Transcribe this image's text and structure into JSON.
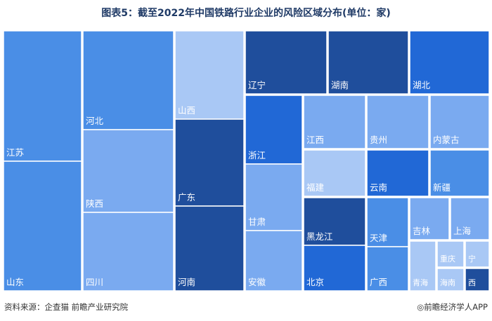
{
  "title": "图表5：截至2022年中国铁路行业企业的风险区域分布(单位：家)",
  "footer": {
    "source": "资料来源：企查猫 前瞻产业研究院",
    "brand": "◎前瞻经济学人APP"
  },
  "chart_data": {
    "type": "treemap",
    "title": "图表5：截至2022年中国铁路行业企业的风险区域分布(单位：家)",
    "colors": {
      "dark": "#1f4e9c",
      "strong": "#2168d6",
      "medium": "#4a8ee6",
      "light": "#7aaaf0",
      "pale": "#a9c8f5",
      "label": "#1f3a66"
    },
    "regions": [
      {
        "name": "江苏",
        "color": "medium"
      },
      {
        "name": "山东",
        "color": "medium"
      },
      {
        "name": "河北",
        "color": "medium"
      },
      {
        "name": "陕西",
        "color": "light"
      },
      {
        "name": "四川",
        "color": "light"
      },
      {
        "name": "山西",
        "color": "pale"
      },
      {
        "name": "广东",
        "color": "dark"
      },
      {
        "name": "河南",
        "color": "dark"
      },
      {
        "name": "辽宁",
        "color": "dark"
      },
      {
        "name": "湖南",
        "color": "dark"
      },
      {
        "name": "湖北",
        "color": "strong"
      },
      {
        "name": "浙江",
        "color": "strong"
      },
      {
        "name": "甘肃",
        "color": "light"
      },
      {
        "name": "安徽",
        "color": "light"
      },
      {
        "name": "江西",
        "color": "light"
      },
      {
        "name": "贵州",
        "color": "light"
      },
      {
        "name": "内蒙古",
        "color": "light"
      },
      {
        "name": "福建",
        "color": "pale"
      },
      {
        "name": "云南",
        "color": "strong"
      },
      {
        "name": "新疆",
        "color": "medium"
      },
      {
        "name": "黑龙江",
        "color": "dark"
      },
      {
        "name": "北京",
        "color": "strong"
      },
      {
        "name": "天津",
        "color": "medium"
      },
      {
        "name": "广西",
        "color": "medium"
      },
      {
        "name": "吉林",
        "color": "light"
      },
      {
        "name": "上海",
        "color": "light"
      },
      {
        "name": "青海",
        "color": "pale"
      },
      {
        "name": "重庆",
        "color": "pale"
      },
      {
        "name": "宁",
        "color": "pale"
      },
      {
        "name": "海南",
        "color": "pale"
      },
      {
        "name": "西",
        "color": "dark"
      }
    ]
  }
}
